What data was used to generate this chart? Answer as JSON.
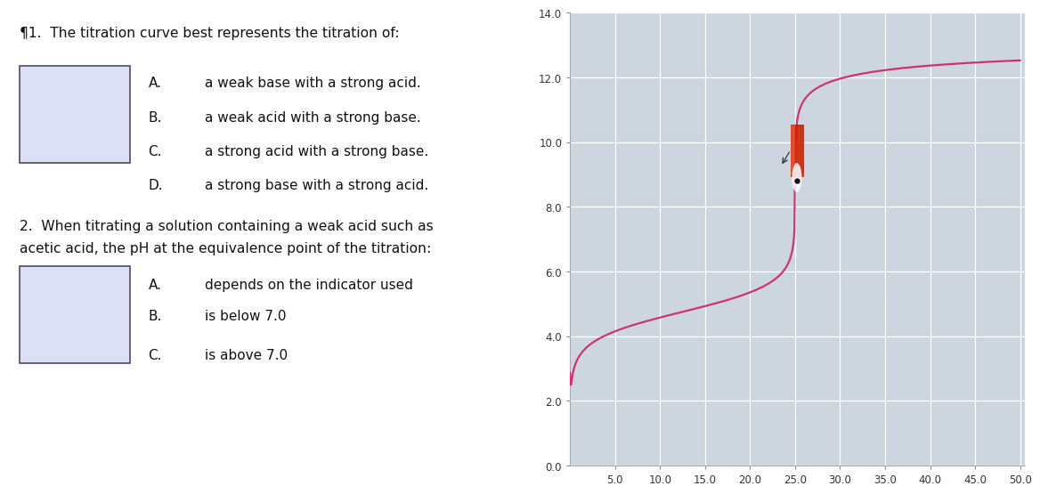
{
  "chart_bg": "#cdd5de",
  "chart_xlim": [
    0,
    50.5
  ],
  "chart_ylim": [
    0.0,
    14.0
  ],
  "xticks": [
    5.0,
    10.0,
    15.0,
    20.0,
    25.0,
    30.0,
    35.0,
    40.0,
    45.0,
    50.0
  ],
  "yticks": [
    0.0,
    2.0,
    4.0,
    6.0,
    8.0,
    10.0,
    12.0,
    14.0
  ],
  "curve_color": "#cc3377",
  "curve_lw": 1.6,
  "equivalence_x": 25.2,
  "equivalence_y": 8.8,
  "q1_line1": "¶1.  The titration curve best represents the titration of:",
  "q1_options": [
    [
      "A.",
      "a weak base with a strong acid."
    ],
    [
      "B.",
      "a weak acid with a strong base."
    ],
    [
      "C.",
      "a strong acid with a strong base."
    ],
    [
      "D.",
      "a strong base with a strong acid."
    ]
  ],
  "q2_line1": "2.  When titrating a solution containing a weak acid such as",
  "q2_line2": "acetic acid, the pH at the equivalence point of the titration:",
  "q2_options": [
    [
      "A.",
      "depends on the indicator used"
    ],
    [
      "B.",
      "is below 7.0"
    ],
    [
      "C.",
      "is above 7.0"
    ]
  ],
  "box_color": "#dde0f5",
  "box_border": "#4a4a6a",
  "text_color": "#111111",
  "font_size_q": 11.2,
  "font_size_opt": 11.0,
  "tick_fontsize": 8.5
}
